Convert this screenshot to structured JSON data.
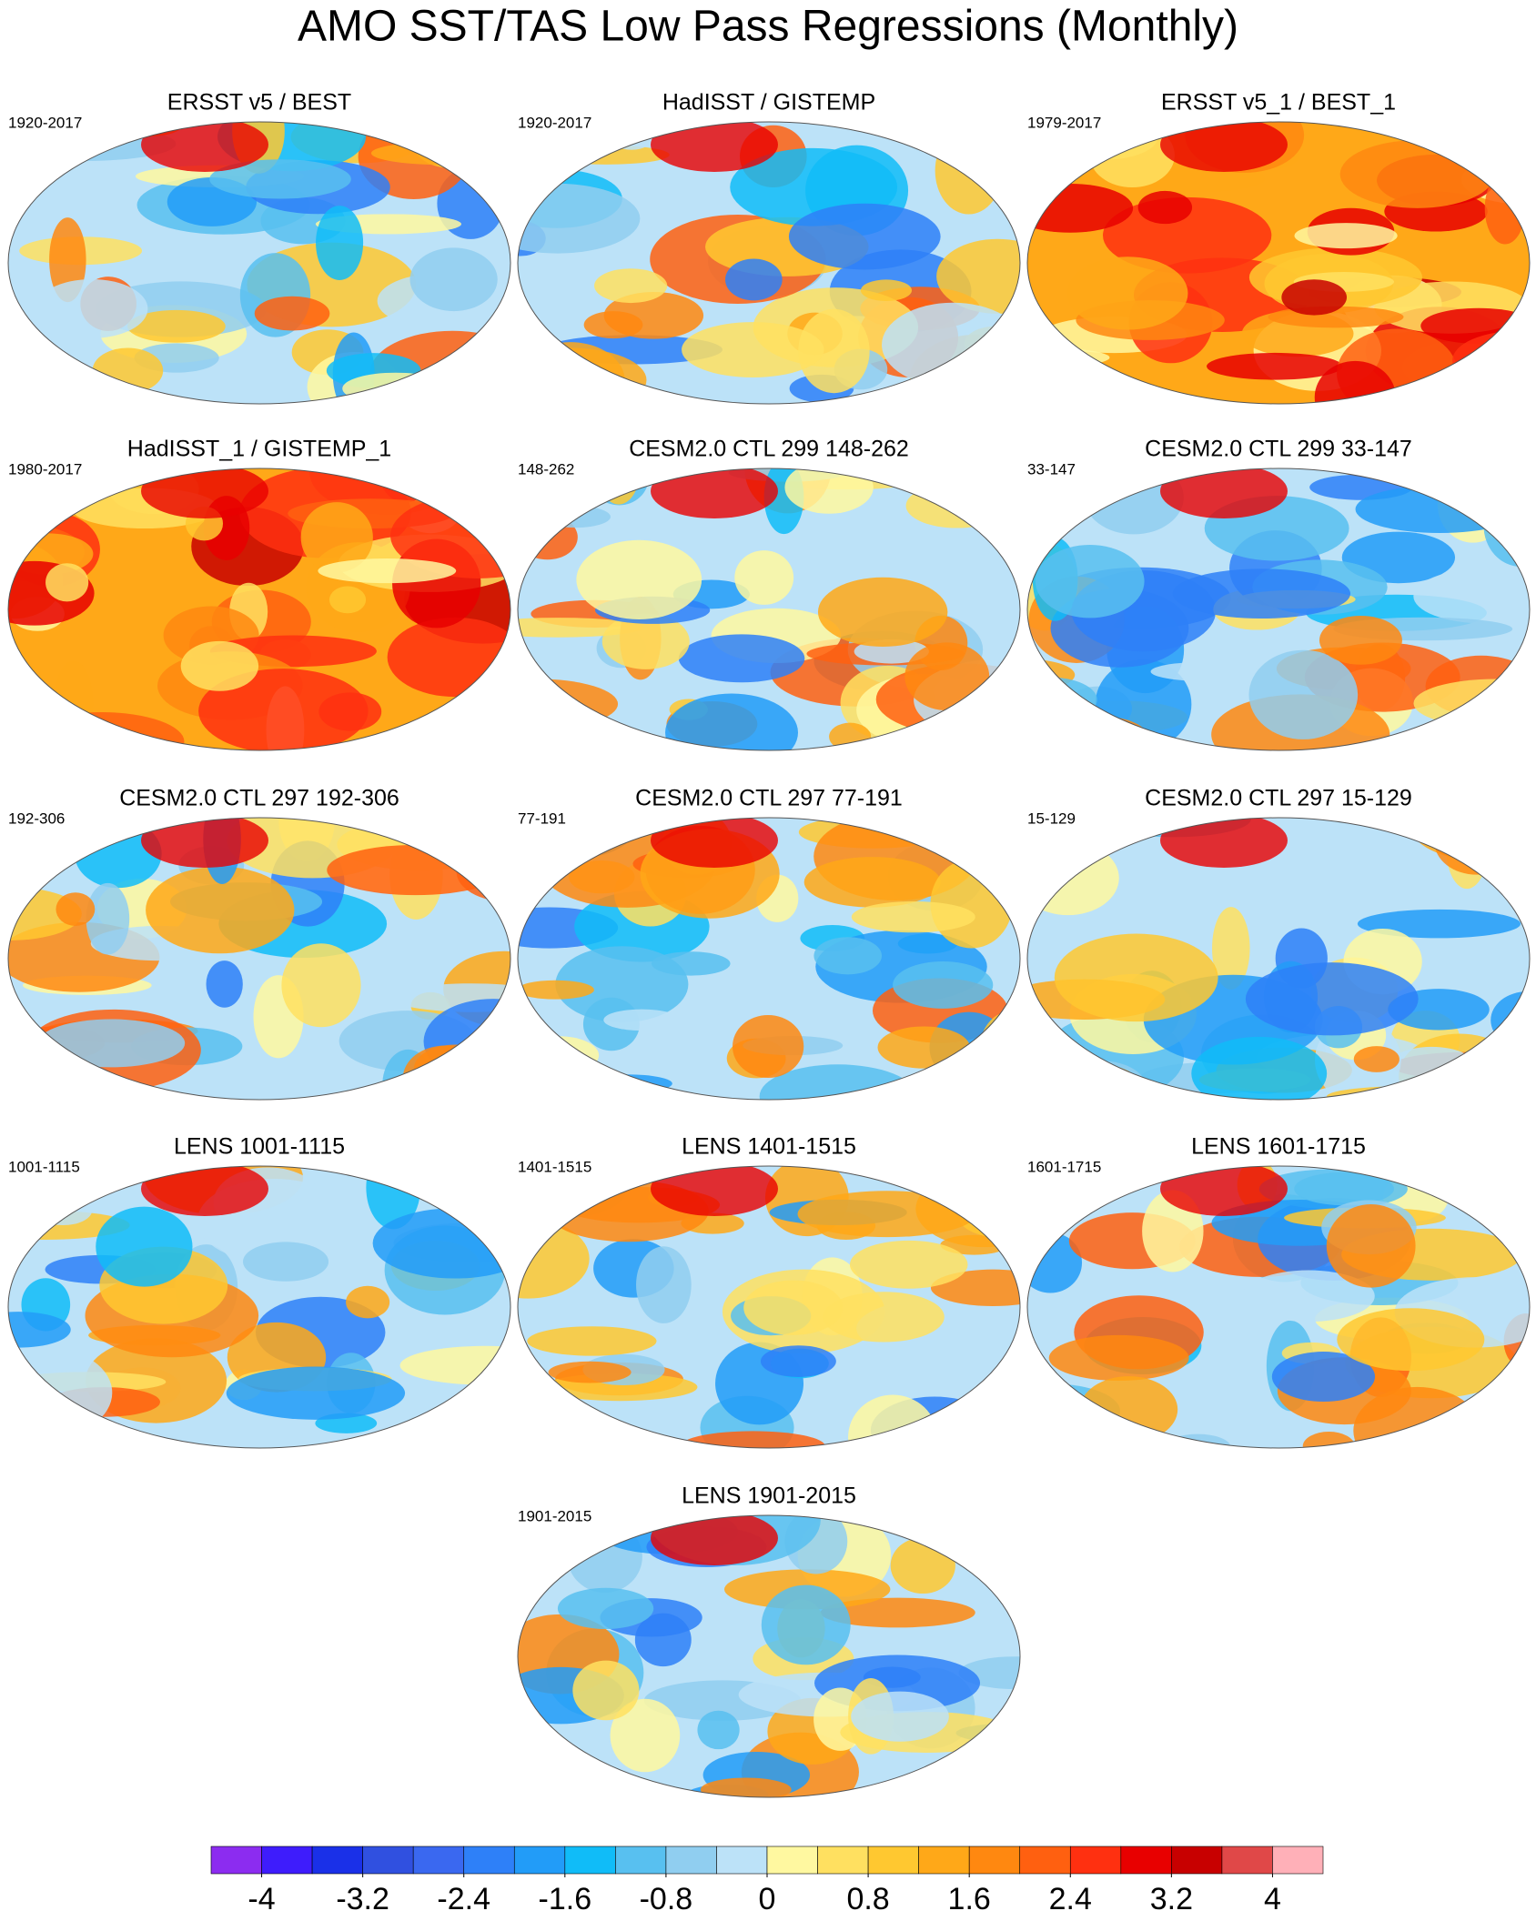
{
  "title": "AMO SST/TAS Low Pass Regressions (Monthly)",
  "panels": [
    {
      "title": "ERSST v5 / BEST",
      "period": "1920-2017"
    },
    {
      "title": "HadISST / GISTEMP",
      "period": "1920-2017"
    },
    {
      "title": "ERSST v5_1 / BEST_1",
      "period": "1979-2017"
    },
    {
      "title": "HadISST_1 / GISTEMP_1",
      "period": "1980-2017"
    },
    {
      "title": "CESM2.0 CTL 299 148-262",
      "period": "148-262"
    },
    {
      "title": "CESM2.0 CTL 299 33-147",
      "period": "33-147"
    },
    {
      "title": "CESM2.0 CTL 297 192-306",
      "period": "192-306"
    },
    {
      "title": "CESM2.0 CTL 297 77-191",
      "period": "77-191"
    },
    {
      "title": "CESM2.0 CTL 297 15-129",
      "period": "15-129"
    },
    {
      "title": "LENS 1001-1115",
      "period": "1001-1115"
    },
    {
      "title": "LENS 1401-1515",
      "period": "1401-1515"
    },
    {
      "title": "LENS 1601-1715",
      "period": "1601-1715"
    },
    {
      "title": "LENS 1901-2015",
      "period": "1901-2015"
    }
  ],
  "colorbar": {
    "colors": [
      "#8c2cf0",
      "#3e1cfc",
      "#1a30e8",
      "#3050e0",
      "#3a68f0",
      "#2e80f8",
      "#229cf8",
      "#10bcf8",
      "#58c0f0",
      "#90cef0",
      "#bce2f8",
      "#fff8a0",
      "#ffe060",
      "#ffc830",
      "#ffa818",
      "#ff8810",
      "#ff6010",
      "#ff3010",
      "#e80000",
      "#c80000",
      "#e04848",
      "#ffb0b8"
    ],
    "ticks": [
      -4,
      -3.2,
      -2.4,
      -1.6,
      -0.8,
      0,
      0.8,
      1.6,
      2.4,
      3.2,
      4
    ]
  }
}
